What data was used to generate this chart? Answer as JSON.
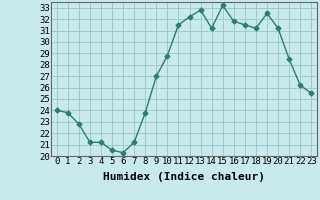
{
  "x": [
    0,
    1,
    2,
    3,
    4,
    5,
    6,
    7,
    8,
    9,
    10,
    11,
    12,
    13,
    14,
    15,
    16,
    17,
    18,
    19,
    20,
    21,
    22,
    23
  ],
  "y": [
    24.0,
    23.8,
    22.8,
    21.2,
    21.2,
    20.5,
    20.3,
    21.2,
    23.8,
    27.0,
    28.8,
    31.5,
    32.2,
    32.8,
    31.2,
    33.2,
    31.8,
    31.5,
    31.2,
    32.5,
    31.2,
    28.5,
    26.2,
    25.5
  ],
  "color": "#2e7d6e",
  "bg_color": "#c8eaea",
  "grid_color": "#a0cccc",
  "xlabel": "Humidex (Indice chaleur)",
  "ylim": [
    20,
    33.5
  ],
  "xlim": [
    -0.5,
    23.5
  ],
  "yticks": [
    20,
    21,
    22,
    23,
    24,
    25,
    26,
    27,
    28,
    29,
    30,
    31,
    32,
    33
  ],
  "xticks": [
    0,
    1,
    2,
    3,
    4,
    5,
    6,
    7,
    8,
    9,
    10,
    11,
    12,
    13,
    14,
    15,
    16,
    17,
    18,
    19,
    20,
    21,
    22,
    23
  ],
  "marker": "D",
  "markersize": 2.5,
  "linewidth": 1.0,
  "xlabel_fontsize": 8,
  "tick_fontsize": 6.5
}
